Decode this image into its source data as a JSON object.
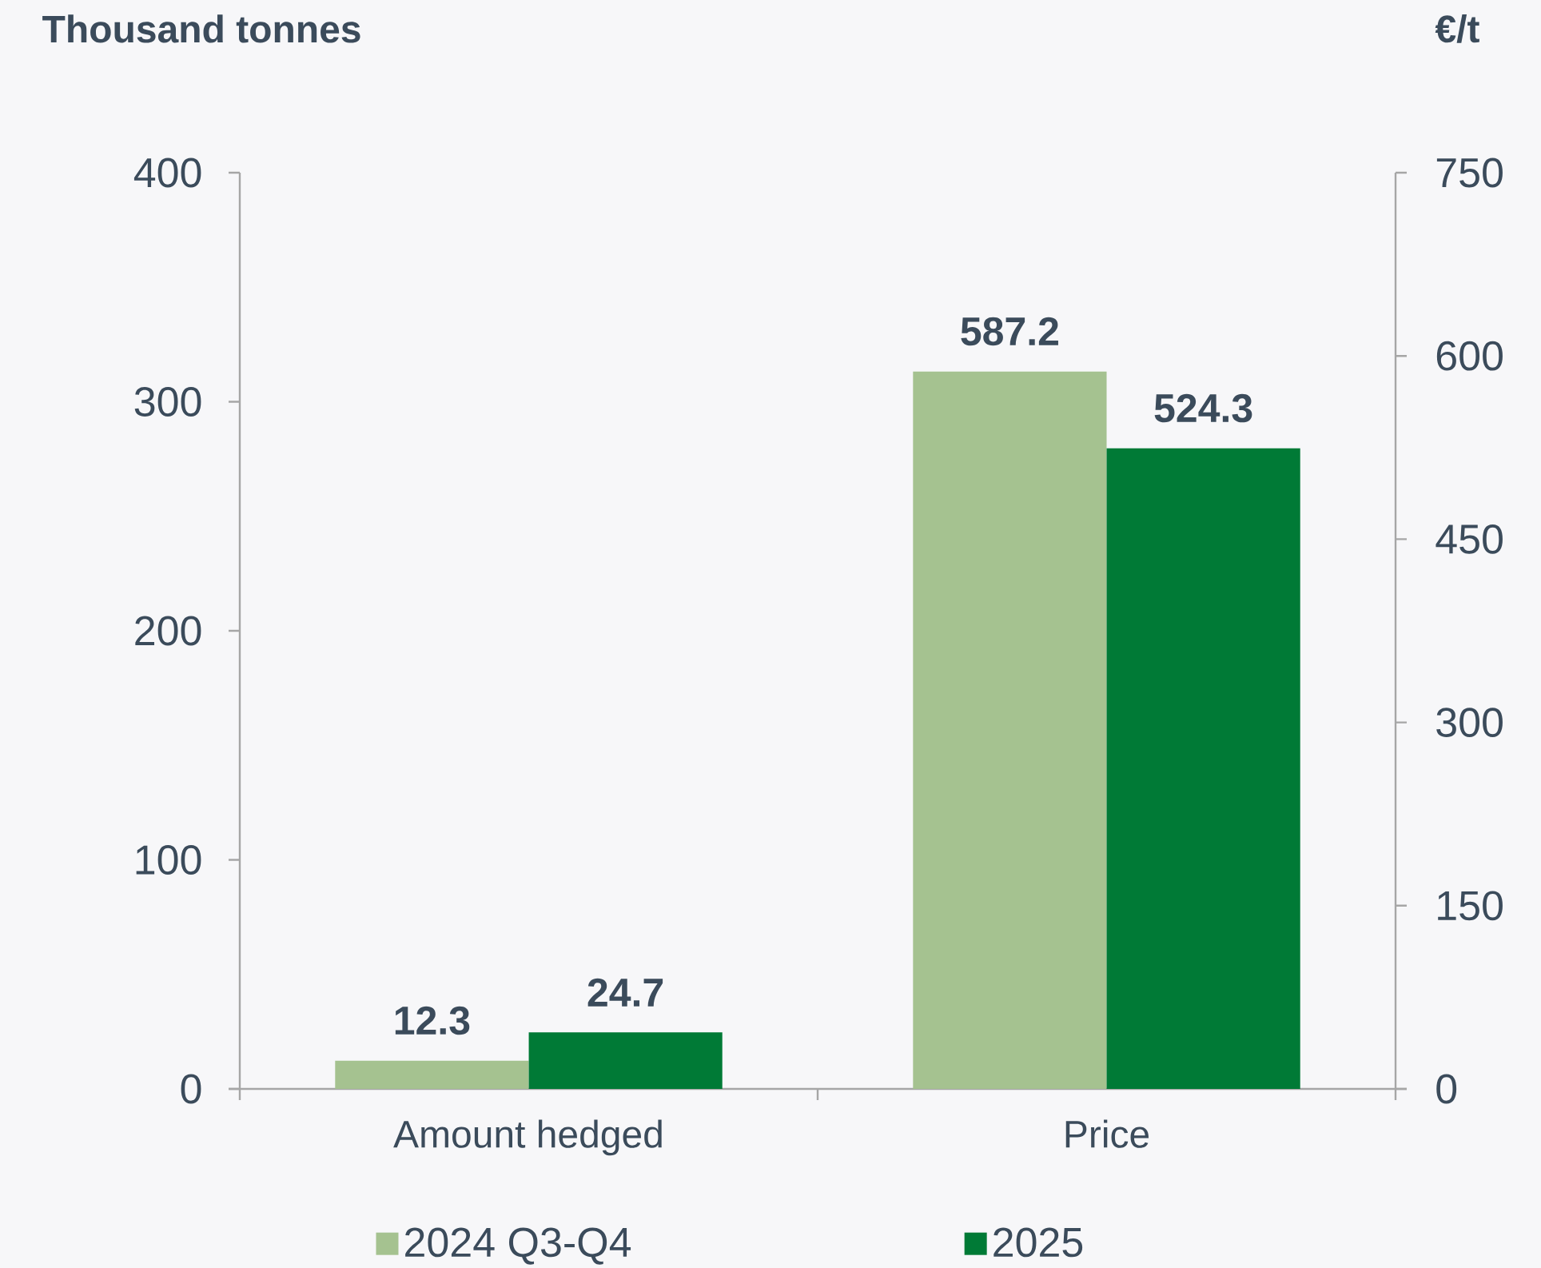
{
  "chart_data": {
    "type": "bar",
    "ylabel": "Thousand tonnes",
    "y2label": "€/t",
    "categories": [
      "Amount hedged",
      "Price"
    ],
    "series": [
      {
        "name": "2024 Q3-Q4",
        "color": "#a5c290",
        "values": [
          12.3,
          null
        ]
      },
      {
        "name": "2025",
        "color": "#007a36",
        "values": [
          24.7,
          null
        ]
      },
      {
        "color": "#a5c290",
        "values": [
          null,
          587.2
        ],
        "axis": "y2"
      },
      {
        "color": "#007a36",
        "values": [
          null,
          524.3
        ],
        "axis": "y2"
      }
    ],
    "ylim": [
      0,
      400
    ],
    "yticks": [
      0,
      100,
      200,
      300,
      400
    ],
    "y2lim": [
      0,
      750
    ],
    "y2ticks": [
      0,
      150,
      300,
      450,
      600,
      750
    ],
    "data_labels": true,
    "legend": "bottom"
  }
}
